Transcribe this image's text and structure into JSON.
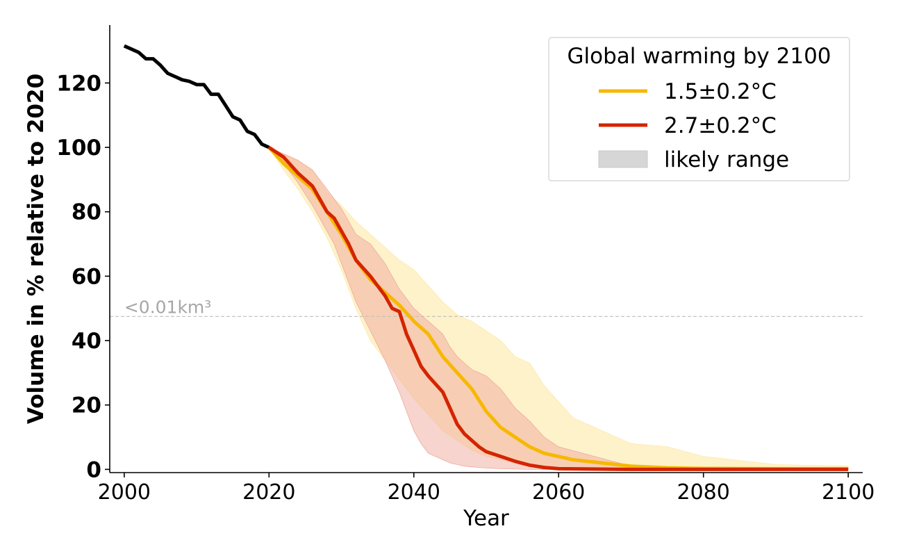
{
  "chart_data": {
    "type": "line",
    "title": "",
    "xlabel": "Year",
    "ylabel": "Volume in % relative to 2020",
    "xlim": [
      1998,
      2102
    ],
    "ylim": [
      -1,
      138
    ],
    "xticks": [
      2000,
      2020,
      2040,
      2060,
      2080,
      2100
    ],
    "yticks": [
      0,
      20,
      40,
      60,
      80,
      100,
      120
    ],
    "xtick_labels": [
      "2000",
      "2020",
      "2040",
      "2060",
      "2080",
      "2100"
    ],
    "ytick_labels": [
      "0",
      "20",
      "40",
      "60",
      "80",
      "100",
      "120"
    ],
    "grid": false,
    "legend": {
      "title": "Global warming by 2100",
      "placement": "top-right",
      "entries": [
        {
          "label": "1.5±0.2°C",
          "kind": "line",
          "color": "#f6b800"
        },
        {
          "label": "2.7±0.2°C",
          "kind": "line",
          "color": "#d42400"
        },
        {
          "label": "likely range",
          "kind": "patch",
          "color": "#d6d6d6"
        }
      ]
    },
    "annotation": {
      "text": "<0.01km³",
      "y": 47.5,
      "color": "#a6a6a6"
    },
    "historical": {
      "color": "#000000",
      "x": [
        2000,
        2001,
        2002,
        2003,
        2004,
        2005,
        2006,
        2007,
        2008,
        2009,
        2010,
        2011,
        2012,
        2013,
        2014,
        2015,
        2016,
        2017,
        2018,
        2019,
        2020
      ],
      "y": [
        131.5,
        130.5,
        129.5,
        127.5,
        127.5,
        125.5,
        123,
        122,
        121,
        120.5,
        119.5,
        119.5,
        116.5,
        116.5,
        113,
        109.5,
        108.5,
        105,
        104,
        101,
        100
      ]
    },
    "series": [
      {
        "name": "1.5±0.2°C",
        "color": "#f6b800",
        "band_color": "#fde9a8",
        "x": [
          2020,
          2022,
          2024,
          2026,
          2028,
          2030,
          2032,
          2034,
          2036,
          2038,
          2040,
          2042,
          2044,
          2046,
          2048,
          2050,
          2052,
          2054,
          2056,
          2058,
          2060,
          2062,
          2064,
          2066,
          2068,
          2070,
          2075,
          2080,
          2090,
          2100
        ],
        "y": [
          100,
          95,
          91,
          87,
          80,
          73,
          65,
          59,
          55,
          51,
          46,
          42,
          35,
          30,
          25,
          18,
          13,
          10,
          7,
          5,
          4,
          3,
          2.5,
          2,
          1.5,
          1,
          0.5,
          0.3,
          0.2,
          0.2
        ],
        "lower": [
          100,
          93,
          87,
          80,
          72,
          62,
          50,
          40,
          34,
          28,
          22,
          17,
          12,
          9,
          6,
          4,
          3,
          2,
          1.5,
          1,
          0.5,
          0.3,
          0.2,
          0.1,
          0,
          0,
          0,
          0,
          0,
          0
        ],
        "upper": [
          100,
          98,
          96,
          93,
          86,
          82,
          77,
          73,
          69,
          65,
          62,
          57,
          52,
          48,
          46,
          43,
          40,
          35,
          33,
          26,
          21,
          16,
          14,
          12,
          10,
          8,
          7,
          4,
          1.5,
          1
        ]
      },
      {
        "name": "2.7±0.2°C",
        "color": "#d42400",
        "band_color": "#f0a99b",
        "x": [
          2020,
          2022,
          2024,
          2026,
          2027,
          2028,
          2029,
          2030,
          2031,
          2032,
          2034,
          2036,
          2037,
          2038,
          2039,
          2040,
          2041,
          2042,
          2044,
          2045,
          2046,
          2047,
          2048,
          2049,
          2050,
          2052,
          2054,
          2056,
          2058,
          2060,
          2070,
          2080,
          2100
        ],
        "y": [
          100,
          97,
          92,
          88,
          84,
          80,
          78,
          74,
          70,
          65,
          60,
          54,
          50,
          49,
          42,
          37,
          32,
          29,
          24,
          19,
          14,
          11,
          9,
          7,
          5.5,
          4,
          2.5,
          1.3,
          0.6,
          0.2,
          0,
          0,
          0
        ],
        "lower": [
          100,
          95,
          89,
          82,
          78,
          74,
          70,
          64,
          58,
          52,
          43,
          34,
          29,
          24,
          18,
          12,
          8,
          5,
          3,
          2,
          1.5,
          1,
          0.8,
          0.6,
          0.4,
          0.2,
          0.1,
          0,
          0,
          0,
          0,
          0,
          0
        ],
        "upper": [
          100,
          98,
          96,
          93,
          90,
          87,
          84,
          81,
          77,
          73,
          70,
          64,
          60,
          56,
          53,
          50,
          48,
          46,
          42,
          38,
          35,
          33,
          31,
          30,
          29,
          25,
          19,
          15,
          10,
          7,
          1,
          0,
          0
        ]
      }
    ]
  }
}
